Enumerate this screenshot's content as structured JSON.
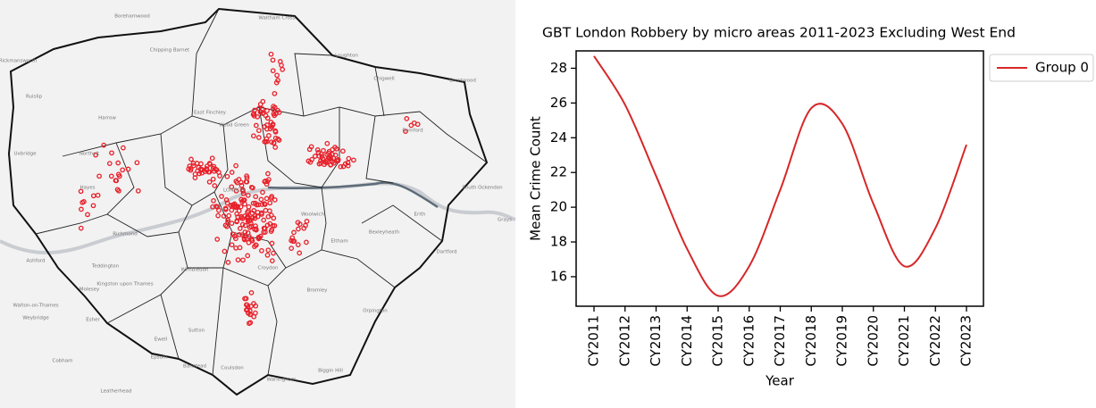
{
  "map": {
    "labels": [
      "Waltham Cross",
      "Borehamwood",
      "Chipping Barnet",
      "Loughton",
      "Chigwell",
      "Brentwood",
      "Rickmansworth",
      "Ruislip",
      "Harrow",
      "Northolt",
      "Wood Green",
      "East Finchley",
      "Romford",
      "Uxbridge",
      "Hayes",
      "Richmond",
      "Teddington",
      "Kingston upon Thames",
      "Wimbledon",
      "Molesey",
      "Walton-on-Thames",
      "Weybridge",
      "Esher",
      "Ewell",
      "Epsom",
      "Sutton",
      "Banstead",
      "Coulsdon",
      "Warlingham",
      "Biggin Hill",
      "Orpington",
      "Bromley",
      "Eltham",
      "Woolwich",
      "Bexleyheath",
      "Dartford",
      "Erith",
      "Grays",
      "South Ockendon",
      "Ashford",
      "Cobham",
      "Leatherhead",
      "LONDON",
      "Croydon"
    ]
  },
  "chart_data": {
    "type": "line",
    "title": "GBT London Robbery by micro areas 2011-2023 Excluding West End",
    "x_label": "Year",
    "y_label": "Mean Crime Count",
    "categories": [
      "CY2011",
      "CY2012",
      "CY2013",
      "CY2014",
      "CY2015",
      "CY2016",
      "CY2017",
      "CY2018",
      "CY2019",
      "CY2020",
      "CY2021",
      "CY2022",
      "CY2023"
    ],
    "series": [
      {
        "name": "Group 0",
        "color": "#d62728",
        "values": [
          28.7,
          25.9,
          21.8,
          17.6,
          14.9,
          16.6,
          21.0,
          25.7,
          24.8,
          20.2,
          16.6,
          18.8,
          23.6
        ]
      }
    ],
    "ylim": [
      14.3,
      29.0
    ],
    "yticks": [
      16,
      18,
      20,
      22,
      24,
      26,
      28
    ],
    "legend": "upper right outside",
    "grid": false
  }
}
